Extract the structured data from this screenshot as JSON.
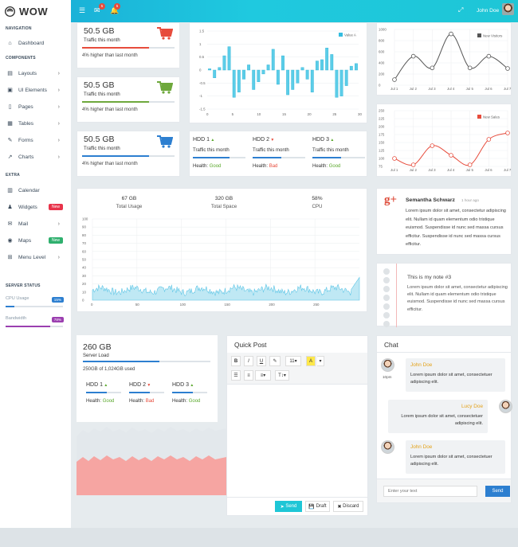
{
  "brand": {
    "name": "WOW"
  },
  "sidebar": {
    "section_navigation": "NAVIGATION",
    "section_components": "COMPONENTS",
    "section_extra": "EXTRA",
    "section_status": "SERVER STATUS",
    "items": [
      {
        "label": "Dashboard",
        "icon": "home-icon"
      },
      {
        "label": "Layouts",
        "icon": "columns-icon"
      },
      {
        "label": "UI Elements",
        "icon": "briefcase-icon"
      },
      {
        "label": "Pages",
        "icon": "file-icon"
      },
      {
        "label": "Tables",
        "icon": "table-icon"
      },
      {
        "label": "Forms",
        "icon": "edit-icon"
      },
      {
        "label": "Charts",
        "icon": "chart-icon"
      },
      {
        "label": "Calendar",
        "icon": "calendar-icon"
      },
      {
        "label": "Widgets",
        "icon": "user-icon",
        "badge": "New"
      },
      {
        "label": "Mail",
        "icon": "envelope-icon"
      },
      {
        "label": "Maps",
        "icon": "map-marker-icon",
        "badge": "New"
      },
      {
        "label": "Menu Level",
        "icon": "plus-square-icon"
      }
    ],
    "status": [
      {
        "label": "CPU Usage",
        "value": "15%",
        "fraction": 0.15,
        "color": "#2d7fd0"
      },
      {
        "label": "Bandwidth",
        "value": "78%",
        "fraction": 0.78,
        "color": "#9b3fb0"
      }
    ]
  },
  "topbar": {
    "mail_count": "5",
    "bell_count": "5",
    "user": "John Doe"
  },
  "traffic_cards": [
    {
      "value": "50.5 GB",
      "label": "Traffic this month",
      "note": "4% higher than last month",
      "color": "#e74c3c",
      "icon": "cart-icon",
      "fill": 0.72
    },
    {
      "value": "50.5 GB",
      "label": "Traffic this month",
      "note": "4% higher than last month",
      "color": "#6ea83c",
      "icon": "cart-icon",
      "fill": 0.72
    },
    {
      "value": "50.5 GB",
      "label": "Traffic this month",
      "note": "4% higher than last month",
      "color": "#2d7fd0",
      "icon": "cart-icon",
      "fill": 0.72
    }
  ],
  "hdd_cards": [
    {
      "title": "HDD 1",
      "trend": "up",
      "label": "Traffic this month",
      "health_label": "Health:",
      "health": "Good",
      "fill": 0.7
    },
    {
      "title": "HDD 2",
      "trend": "down",
      "label": "Traffic this month",
      "health_label": "Health:",
      "health": "Bad",
      "fill": 0.55
    },
    {
      "title": "HDD 3",
      "trend": "up",
      "label": "Traffic this month",
      "health_label": "Health:",
      "health": "Good",
      "fill": 0.55
    }
  ],
  "usage": {
    "stats": [
      {
        "value": "67 GB",
        "label": "Total Usage"
      },
      {
        "value": "320 GB",
        "label": "Total Space"
      },
      {
        "value": "58%",
        "label": "CPU"
      }
    ]
  },
  "server_load": {
    "value": "260 GB",
    "label": "Server Load",
    "detail": "250GB of 1,024GB used",
    "fill": 0.6,
    "hdds": [
      {
        "title": "HDD 1",
        "trend": "up",
        "health_label": "Health:",
        "health": "Good"
      },
      {
        "title": "HDD 2",
        "trend": "down",
        "health_label": "Health:",
        "health": "Bad"
      },
      {
        "title": "HDD 3",
        "trend": "up",
        "health_label": "Health:",
        "health": "Good"
      }
    ]
  },
  "google_post": {
    "name": "Semantha Schwarz",
    "time": "1 hour ago",
    "text": "Lorem ipsum dolor sit amet, consectetur adipiscing elit. Nullam id quam elementum odio tristique euismod. Suspendisse id nunc sed massa cursus efficitur. Suspendisse id nunc sed massa cursus efficitur."
  },
  "note": {
    "title": "This is my note #3",
    "text": "Lorem ipsum dolor sit amet, consectetur adipiscing elit. Nullam id quam elementum odio tristique euismod. Suspendisse id nunc sed massa cursus efficitur."
  },
  "quick_post": {
    "title": "Quick Post",
    "toolbar": [
      "B",
      "I",
      "U",
      "✎",
      "11▾",
      "A",
      "≡▾",
      "T↕▾"
    ],
    "send": "Send",
    "draft": "Draft",
    "discard": "Discard"
  },
  "chat": {
    "title": "Chat",
    "messages": [
      {
        "name": "John Doe",
        "text": "Lorem ipsum dolor sit amet, consectetuer adipiscing elit.",
        "time": "10pm",
        "side": "left"
      },
      {
        "name": "Lucy Doe",
        "text": "Lorem ipsum dolor sit amet, consectetuer adipiscing elit.",
        "side": "right"
      },
      {
        "name": "John Doe",
        "text": "Lorem ipsum dolor sit amet, consectetuer adipiscing elit.",
        "side": "left"
      }
    ],
    "input_placeholder": "Enter your text",
    "send": "Send"
  },
  "chart_data": [
    {
      "type": "bar",
      "legend": [
        "Value A"
      ],
      "ylim": [
        -1.5,
        1.5
      ],
      "yticks": [
        "1.5",
        "1",
        "0.5",
        "0",
        "-0.5",
        "-1",
        "-1.5"
      ],
      "xticks": [
        "0",
        "5",
        "10",
        "15",
        "20",
        "25",
        "30"
      ],
      "values": [
        0.05,
        -0.3,
        0.1,
        0.55,
        0.9,
        -1.05,
        -0.85,
        -0.35,
        0.2,
        -0.75,
        -0.45,
        -0.15,
        0.2,
        0.8,
        -0.55,
        0.55,
        -0.95,
        -0.75,
        -0.5,
        0.1,
        -0.35,
        -0.85,
        0.35,
        0.4,
        0.85,
        0.6,
        -1.05,
        -1.0,
        -0.6,
        0.15,
        0.25
      ]
    },
    {
      "type": "line",
      "legend": [
        "New Visitors"
      ],
      "categories": [
        "Jul 1",
        "Jul 2",
        "Jul 3",
        "Jul 4",
        "Jul 5",
        "Jul 6",
        "Jul 7"
      ],
      "values": [
        100,
        520,
        310,
        920,
        310,
        520,
        300
      ],
      "ylim": [
        0,
        1000
      ],
      "yticks": [
        "1000",
        "800",
        "600",
        "400",
        "200",
        "0"
      ],
      "color": "#555"
    },
    {
      "type": "line",
      "legend": [
        "New Sales"
      ],
      "categories": [
        "Jul 1",
        "Jul 2",
        "Jul 3",
        "Jul 4",
        "Jul 5",
        "Jul 6",
        "Jul 7"
      ],
      "values": [
        100,
        80,
        140,
        110,
        80,
        160,
        180
      ],
      "ylim": [
        75,
        250
      ],
      "yticks": [
        "250",
        "225",
        "200",
        "175",
        "150",
        "125",
        "100",
        "75"
      ],
      "color": "#e74c3c"
    },
    {
      "type": "area",
      "xticks": [
        "0",
        "50",
        "100",
        "150",
        "200",
        "250"
      ],
      "yticks": [
        "100",
        "90",
        "80",
        "70",
        "60",
        "50",
        "40",
        "30",
        "20",
        "10",
        "0"
      ],
      "ylim": [
        0,
        100
      ],
      "xlim": [
        0,
        300
      ]
    }
  ]
}
